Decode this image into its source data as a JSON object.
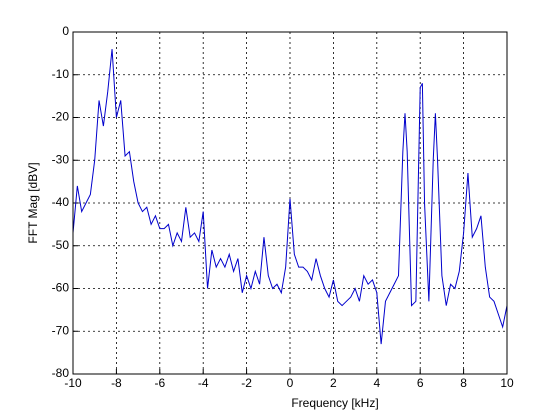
{
  "chart_data": {
    "type": "line",
    "xlabel": "Frequency [kHz]",
    "ylabel": "FFT Mag [dBV]",
    "x": [
      -10,
      -9.8,
      -9.6,
      -9.4,
      -9.2,
      -9,
      -8.8,
      -8.6,
      -8.4,
      -8.2,
      -8,
      -7.8,
      -7.6,
      -7.4,
      -7.2,
      -7,
      -6.8,
      -6.6,
      -6.4,
      -6.2,
      -6,
      -5.8,
      -5.6,
      -5.4,
      -5.2,
      -5,
      -4.8,
      -4.6,
      -4.4,
      -4.2,
      -4,
      -3.8,
      -3.6,
      -3.4,
      -3.2,
      -3,
      -2.8,
      -2.6,
      -2.4,
      -2.2,
      -2,
      -1.8,
      -1.6,
      -1.4,
      -1.2,
      -1,
      -0.8,
      -0.6,
      -0.4,
      -0.2,
      0,
      0.2,
      0.4,
      0.6,
      0.8,
      1,
      1.2,
      1.4,
      1.6,
      1.8,
      2,
      2.2,
      2.4,
      2.6,
      2.8,
      3,
      3.2,
      3.4,
      3.6,
      3.8,
      4,
      4.2,
      4.4,
      4.6,
      4.8,
      5,
      5.2,
      5.3,
      5.4,
      5.6,
      5.8,
      6,
      6.1,
      6.2,
      6.4,
      6.6,
      6.7,
      6.8,
      7,
      7.2,
      7.4,
      7.6,
      7.8,
      8,
      8.2,
      8.4,
      8.6,
      8.8,
      9,
      9.2,
      9.4,
      9.6,
      9.8,
      10
    ],
    "series": [
      {
        "color": "#0000cc",
        "values": [
          -47,
          -36,
          -42,
          -40,
          -38,
          -30,
          -16,
          -22,
          -14,
          -4,
          -20,
          -16,
          -29,
          -28,
          -35,
          -40,
          -42,
          -41,
          -45,
          -43,
          -46,
          -46,
          -45,
          -50,
          -47,
          -49,
          -41,
          -48,
          -47,
          -49,
          -42,
          -60,
          -51,
          -55,
          -53,
          -55,
          -52,
          -56,
          -53,
          -61,
          -57,
          -60,
          -56,
          -59,
          -48,
          -57,
          -60,
          -59,
          -61,
          -55,
          -39,
          -52,
          -55,
          -55,
          -56,
          -58,
          -53,
          -57,
          -60,
          -62,
          -58,
          -63,
          -64,
          -63,
          -62,
          -60,
          -63,
          -57,
          -59,
          -58,
          -61,
          -73,
          -63,
          -61,
          -59,
          -57,
          -28,
          -19,
          -28,
          -64,
          -63,
          -13,
          -12,
          -40,
          -63,
          -30,
          -19,
          -30,
          -57,
          -64,
          -59,
          -60,
          -56,
          -47,
          -33,
          -48,
          -46,
          -43,
          -55,
          -62,
          -63,
          -66,
          -69,
          -64
        ]
      }
    ],
    "xlim": [
      -10,
      10
    ],
    "xticks": [
      -10,
      -8,
      -6,
      -4,
      -2,
      0,
      2,
      4,
      6,
      8,
      10
    ],
    "ylim": [
      -80,
      0
    ],
    "yticks": [
      -80,
      -70,
      -60,
      -50,
      -40,
      -30,
      -20,
      -10,
      0
    ],
    "grid": true
  }
}
